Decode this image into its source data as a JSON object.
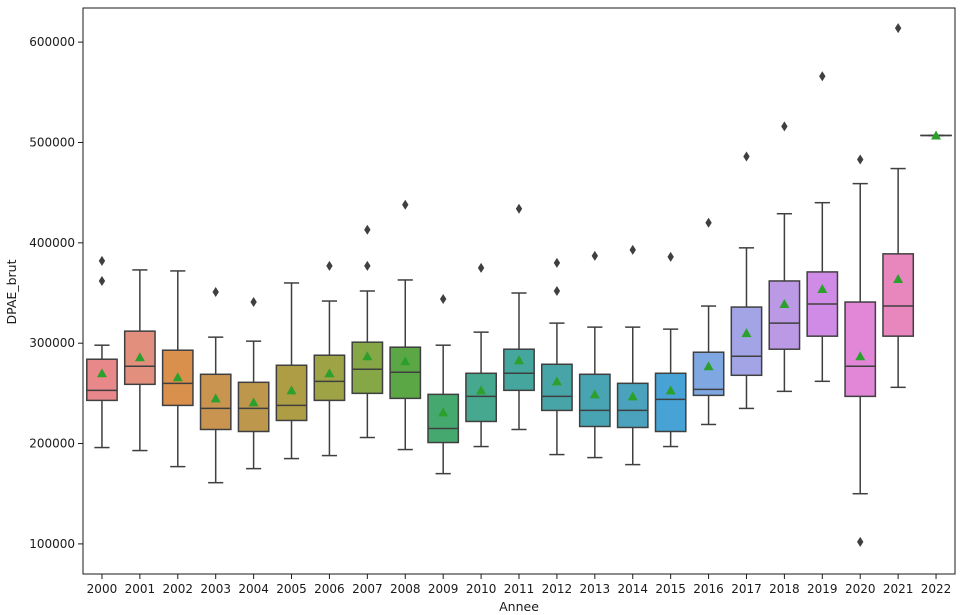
{
  "chart_data": {
    "type": "box",
    "title": "",
    "xlabel": "Annee",
    "ylabel": "DPAE_brut",
    "ylim": [
      70000,
      634000
    ],
    "yticks": [
      100000,
      200000,
      300000,
      400000,
      500000,
      600000
    ],
    "ytick_labels": [
      "100000",
      "200000",
      "300000",
      "400000",
      "500000",
      "600000"
    ],
    "grid": false,
    "mean_marker": "triangle",
    "mean_color": "#2ca02c",
    "box_edge_color": "#3f3f3f",
    "outlier_color": "#3f3f3f",
    "categories": [
      "2000",
      "2001",
      "2002",
      "2003",
      "2004",
      "2005",
      "2006",
      "2007",
      "2008",
      "2009",
      "2010",
      "2011",
      "2012",
      "2013",
      "2014",
      "2015",
      "2016",
      "2017",
      "2018",
      "2019",
      "2020",
      "2021",
      "2022"
    ],
    "boxes": [
      {
        "year": "2000",
        "color": "#e8888b",
        "whisker_low": 196000,
        "q1": 243000,
        "median": 253000,
        "q3": 284000,
        "whisker_high": 298000,
        "mean": 270000,
        "outliers": [
          362000,
          382000
        ]
      },
      {
        "year": "2001",
        "color": "#e2907d",
        "whisker_low": 193000,
        "q1": 259000,
        "median": 277000,
        "q3": 312000,
        "whisker_high": 373000,
        "mean": 286000,
        "outliers": []
      },
      {
        "year": "2002",
        "color": "#d9904c",
        "whisker_low": 177000,
        "q1": 238000,
        "median": 260000,
        "q3": 293000,
        "whisker_high": 372000,
        "mean": 266000,
        "outliers": []
      },
      {
        "year": "2003",
        "color": "#c8944f",
        "whisker_low": 161000,
        "q1": 214000,
        "median": 235000,
        "q3": 269000,
        "whisker_high": 306000,
        "mean": 245000,
        "outliers": [
          351000
        ]
      },
      {
        "year": "2004",
        "color": "#bd974c",
        "whisker_low": 175000,
        "q1": 212000,
        "median": 235000,
        "q3": 261000,
        "whisker_high": 302000,
        "mean": 241000,
        "outliers": [
          341000
        ]
      },
      {
        "year": "2005",
        "color": "#ae9d45",
        "whisker_low": 185000,
        "q1": 223000,
        "median": 238000,
        "q3": 278000,
        "whisker_high": 360000,
        "mean": 253000,
        "outliers": []
      },
      {
        "year": "2006",
        "color": "#9ea345",
        "whisker_low": 188000,
        "q1": 243000,
        "median": 262000,
        "q3": 288000,
        "whisker_high": 342000,
        "mean": 270000,
        "outliers": [
          377000
        ]
      },
      {
        "year": "2007",
        "color": "#85a745",
        "whisker_low": 206000,
        "q1": 250000,
        "median": 274000,
        "q3": 301000,
        "whisker_high": 352000,
        "mean": 287000,
        "outliers": [
          377000,
          413000
        ]
      },
      {
        "year": "2008",
        "color": "#5ba645",
        "whisker_low": 194000,
        "q1": 245000,
        "median": 271000,
        "q3": 296000,
        "whisker_high": 363000,
        "mean": 282000,
        "outliers": [
          438000
        ]
      },
      {
        "year": "2009",
        "color": "#45a86f",
        "whisker_low": 170000,
        "q1": 201000,
        "median": 215000,
        "q3": 249000,
        "whisker_high": 298000,
        "mean": 231000,
        "outliers": [
          344000
        ]
      },
      {
        "year": "2010",
        "color": "#46a88e",
        "whisker_low": 197000,
        "q1": 222000,
        "median": 247000,
        "q3": 270000,
        "whisker_high": 311000,
        "mean": 253000,
        "outliers": [
          375000
        ]
      },
      {
        "year": "2011",
        "color": "#45a69d",
        "whisker_low": 214000,
        "q1": 253000,
        "median": 270000,
        "q3": 294000,
        "whisker_high": 350000,
        "mean": 283000,
        "outliers": [
          434000
        ]
      },
      {
        "year": "2012",
        "color": "#47a5a8",
        "whisker_low": 189000,
        "q1": 233000,
        "median": 247000,
        "q3": 279000,
        "whisker_high": 320000,
        "mean": 262000,
        "outliers": [
          352000,
          380000
        ]
      },
      {
        "year": "2013",
        "color": "#48a3b3",
        "whisker_low": 186000,
        "q1": 217000,
        "median": 233000,
        "q3": 269000,
        "whisker_high": 316000,
        "mean": 249000,
        "outliers": [
          387000
        ]
      },
      {
        "year": "2014",
        "color": "#4aa2bc",
        "whisker_low": 179000,
        "q1": 216000,
        "median": 233000,
        "q3": 260000,
        "whisker_high": 316000,
        "mean": 247000,
        "outliers": [
          393000
        ]
      },
      {
        "year": "2015",
        "color": "#47a3d6",
        "whisker_low": 197000,
        "q1": 212000,
        "median": 244000,
        "q3": 270000,
        "whisker_high": 314000,
        "mean": 253000,
        "outliers": [
          386000
        ]
      },
      {
        "year": "2016",
        "color": "#7fa8e2",
        "whisker_low": 219000,
        "q1": 248000,
        "median": 254000,
        "q3": 291000,
        "whisker_high": 337000,
        "mean": 277000,
        "outliers": [
          420000
        ]
      },
      {
        "year": "2017",
        "color": "#a3a4e6",
        "whisker_low": 235000,
        "q1": 268000,
        "median": 287000,
        "q3": 336000,
        "whisker_high": 395000,
        "mean": 310000,
        "outliers": [
          486000
        ]
      },
      {
        "year": "2018",
        "color": "#bb99e5",
        "whisker_low": 252000,
        "q1": 294000,
        "median": 320000,
        "q3": 362000,
        "whisker_high": 429000,
        "mean": 339000,
        "outliers": [
          516000
        ]
      },
      {
        "year": "2019",
        "color": "#d08be6",
        "whisker_low": 262000,
        "q1": 307000,
        "median": 339000,
        "q3": 371000,
        "whisker_high": 440000,
        "mean": 354000,
        "outliers": [
          566000
        ]
      },
      {
        "year": "2020",
        "color": "#e287d8",
        "whisker_low": 150000,
        "q1": 247000,
        "median": 277000,
        "q3": 341000,
        "whisker_high": 459000,
        "mean": 287000,
        "outliers": [
          102000,
          483000
        ]
      },
      {
        "year": "2021",
        "color": "#e887be",
        "whisker_low": 256000,
        "q1": 307000,
        "median": 337000,
        "q3": 389000,
        "whisker_high": 474000,
        "mean": 364000,
        "outliers": [
          614000
        ]
      },
      {
        "year": "2022",
        "color": "#e88aa8",
        "whisker_low": 507000,
        "q1": 507000,
        "median": 507000,
        "q3": 507000,
        "whisker_high": 507000,
        "mean": 507000,
        "outliers": []
      }
    ]
  }
}
